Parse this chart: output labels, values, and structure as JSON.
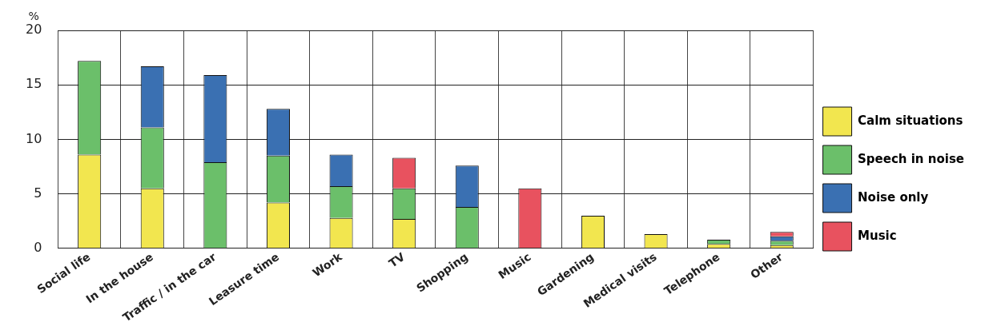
{
  "chart_data": {
    "type": "bar",
    "stacked": true,
    "ylabel": "%",
    "categories": [
      "Social life",
      "In the house",
      "Traffic / in the car",
      "Leasure time",
      "Work",
      "TV",
      "Shopping",
      "Music",
      "Gardening",
      "Medical visits",
      "Telephone",
      "Other"
    ],
    "series": [
      {
        "name": "Calm situations",
        "color": "#f2e64f",
        "values": [
          8.6,
          5.5,
          null,
          4.2,
          2.8,
          2.7,
          null,
          null,
          3.0,
          1.3,
          0.4,
          0.3
        ]
      },
      {
        "name": "Speech in noise",
        "color": "#6bbf6a",
        "values": [
          8.6,
          5.6,
          7.9,
          4.3,
          2.9,
          2.8,
          3.8,
          null,
          null,
          null,
          0.4,
          0.4
        ]
      },
      {
        "name": "Noise only",
        "color": "#3a70b2",
        "values": [
          null,
          5.6,
          8.0,
          4.3,
          2.9,
          null,
          3.8,
          null,
          null,
          null,
          null,
          0.4
        ]
      },
      {
        "name": "Music",
        "color": "#e8525f",
        "values": [
          null,
          null,
          null,
          null,
          null,
          2.8,
          null,
          5.5,
          null,
          null,
          null,
          0.4
        ]
      }
    ],
    "ylim": [
      0,
      20
    ],
    "yticks": [
      0,
      5,
      10,
      15,
      20
    ],
    "grid": true,
    "legend": "right"
  }
}
